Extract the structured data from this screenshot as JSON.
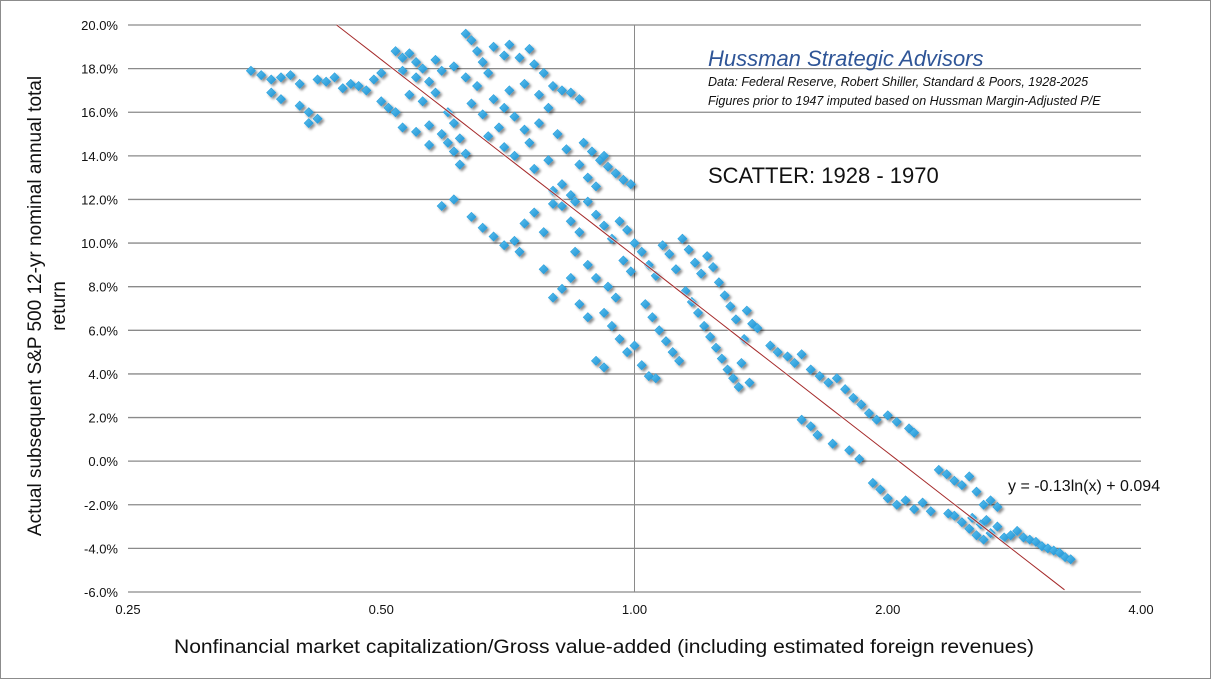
{
  "chart_data": {
    "type": "scatter",
    "title": "Hussman Strategic Advisors",
    "annotations": [
      "Data: Federal Reserve, Robert Shiller, Standard & Poors, 1928-2025",
      "Figures prior to 1947 imputed based on Hussman Margin-Adjusted P/E"
    ],
    "subtitle": "SCATTER: 1928 - 1970",
    "xlabel": "Nonfinancial market capitalization/Gross value-added (including estimated foreign revenues)",
    "ylabel": "Actual subsequent S&P 500 12-yr nominal annual total return",
    "x_scale": "log2",
    "xlim": [
      0.25,
      4.0
    ],
    "ylim": [
      -6.0,
      20.0
    ],
    "x_ticks": [
      "0.25",
      "0.50",
      "1.00",
      "2.00",
      "4.00"
    ],
    "x_tick_values": [
      0.25,
      0.5,
      1,
      2,
      4
    ],
    "y_ticks": [
      "20.0%",
      "18.0%",
      "16.0%",
      "14.0%",
      "12.0%",
      "10.0%",
      "8.0%",
      "6.0%",
      "4.0%",
      "2.0%",
      "0.0%",
      "-2.0%",
      "-4.0%",
      "-6.0%"
    ],
    "y_tick_values": [
      20,
      18,
      16,
      14,
      12,
      10,
      8,
      6,
      4,
      2,
      0,
      -2,
      -4,
      -6
    ],
    "grid": "horizontal",
    "marker": "diamond",
    "marker_color": "#2b9fdc",
    "trendline": {
      "type": "logarithmic",
      "equation": "y = -0.13ln(x) + 0.094",
      "a": -0.13,
      "b": 0.094,
      "color": "#a52a2a"
    },
    "points": [
      [
        0.35,
        17.9
      ],
      [
        0.36,
        17.7
      ],
      [
        0.37,
        17.5
      ],
      [
        0.37,
        16.9
      ],
      [
        0.38,
        17.6
      ],
      [
        0.38,
        16.6
      ],
      [
        0.39,
        17.7
      ],
      [
        0.4,
        17.3
      ],
      [
        0.4,
        16.3
      ],
      [
        0.41,
        16.0
      ],
      [
        0.41,
        15.5
      ],
      [
        0.42,
        15.7
      ],
      [
        0.42,
        17.5
      ],
      [
        0.43,
        17.4
      ],
      [
        0.44,
        17.6
      ],
      [
        0.45,
        17.1
      ],
      [
        0.46,
        17.3
      ],
      [
        0.47,
        17.2
      ],
      [
        0.48,
        17.0
      ],
      [
        0.49,
        17.5
      ],
      [
        0.5,
        17.8
      ],
      [
        0.5,
        16.5
      ],
      [
        0.51,
        16.2
      ],
      [
        0.52,
        16.0
      ],
      [
        0.52,
        18.8
      ],
      [
        0.53,
        18.5
      ],
      [
        0.54,
        18.7
      ],
      [
        0.55,
        18.3
      ],
      [
        0.53,
        17.9
      ],
      [
        0.55,
        17.6
      ],
      [
        0.56,
        18.0
      ],
      [
        0.57,
        17.4
      ],
      [
        0.54,
        16.8
      ],
      [
        0.56,
        16.5
      ],
      [
        0.58,
        16.9
      ],
      [
        0.57,
        15.4
      ],
      [
        0.59,
        15.0
      ],
      [
        0.6,
        14.6
      ],
      [
        0.61,
        14.2
      ],
      [
        0.62,
        14.8
      ],
      [
        0.6,
        16.0
      ],
      [
        0.61,
        15.5
      ],
      [
        0.59,
        17.9
      ],
      [
        0.61,
        18.1
      ],
      [
        0.58,
        18.4
      ],
      [
        0.62,
        13.6
      ],
      [
        0.63,
        14.1
      ],
      [
        0.55,
        15.1
      ],
      [
        0.53,
        15.3
      ],
      [
        0.57,
        14.5
      ],
      [
        0.63,
        19.6
      ],
      [
        0.64,
        19.3
      ],
      [
        0.65,
        18.8
      ],
      [
        0.66,
        18.3
      ],
      [
        0.67,
        17.8
      ],
      [
        0.63,
        17.6
      ],
      [
        0.65,
        17.2
      ],
      [
        0.68,
        16.6
      ],
      [
        0.7,
        16.2
      ],
      [
        0.72,
        15.8
      ],
      [
        0.74,
        15.2
      ],
      [
        0.71,
        17.0
      ],
      [
        0.73,
        18.5
      ],
      [
        0.75,
        18.9
      ],
      [
        0.76,
        18.2
      ],
      [
        0.78,
        17.8
      ],
      [
        0.74,
        17.3
      ],
      [
        0.77,
        16.8
      ],
      [
        0.69,
        15.3
      ],
      [
        0.66,
        15.9
      ],
      [
        0.64,
        16.4
      ],
      [
        0.67,
        14.9
      ],
      [
        0.7,
        14.4
      ],
      [
        0.72,
        14.0
      ],
      [
        0.75,
        14.6
      ],
      [
        0.77,
        15.5
      ],
      [
        0.79,
        16.2
      ],
      [
        0.8,
        17.2
      ],
      [
        0.82,
        17.0
      ],
      [
        0.84,
        16.9
      ],
      [
        0.86,
        16.6
      ],
      [
        0.81,
        15.0
      ],
      [
        0.83,
        14.3
      ],
      [
        0.79,
        13.8
      ],
      [
        0.76,
        13.4
      ],
      [
        0.68,
        19.0
      ],
      [
        0.7,
        18.6
      ],
      [
        0.71,
        19.1
      ],
      [
        0.87,
        14.6
      ],
      [
        0.89,
        14.2
      ],
      [
        0.91,
        13.8
      ],
      [
        0.93,
        13.5
      ],
      [
        0.95,
        13.2
      ],
      [
        0.97,
        12.9
      ],
      [
        0.99,
        12.7
      ],
      [
        0.88,
        13.0
      ],
      [
        0.9,
        12.6
      ],
      [
        0.86,
        13.6
      ],
      [
        0.92,
        14.0
      ],
      [
        0.84,
        12.2
      ],
      [
        0.82,
        12.7
      ],
      [
        0.85,
        11.9
      ],
      [
        0.59,
        11.7
      ],
      [
        0.61,
        12.0
      ],
      [
        0.64,
        11.2
      ],
      [
        0.66,
        10.7
      ],
      [
        0.68,
        10.3
      ],
      [
        0.7,
        9.9
      ],
      [
        0.72,
        10.1
      ],
      [
        0.74,
        10.9
      ],
      [
        0.76,
        11.4
      ],
      [
        0.78,
        10.5
      ],
      [
        0.73,
        9.6
      ],
      [
        0.8,
        11.8
      ],
      [
        0.8,
        12.4
      ],
      [
        0.82,
        11.7
      ],
      [
        0.84,
        11.0
      ],
      [
        0.86,
        10.5
      ],
      [
        0.88,
        11.9
      ],
      [
        0.9,
        11.3
      ],
      [
        0.92,
        10.8
      ],
      [
        0.94,
        10.2
      ],
      [
        0.96,
        11.0
      ],
      [
        0.98,
        10.6
      ],
      [
        1.0,
        10.0
      ],
      [
        0.85,
        9.6
      ],
      [
        0.88,
        9.0
      ],
      [
        0.9,
        8.4
      ],
      [
        0.93,
        8.0
      ],
      [
        0.95,
        7.5
      ],
      [
        0.97,
        9.2
      ],
      [
        0.99,
        8.7
      ],
      [
        1.02,
        9.6
      ],
      [
        1.04,
        9.0
      ],
      [
        1.06,
        8.5
      ],
      [
        1.08,
        9.9
      ],
      [
        1.1,
        9.5
      ],
      [
        1.12,
        8.8
      ],
      [
        1.14,
        10.2
      ],
      [
        1.16,
        9.7
      ],
      [
        1.18,
        9.1
      ],
      [
        1.2,
        8.6
      ],
      [
        1.22,
        9.4
      ],
      [
        1.24,
        8.9
      ],
      [
        1.26,
        8.2
      ],
      [
        1.28,
        7.6
      ],
      [
        1.3,
        7.1
      ],
      [
        1.03,
        7.2
      ],
      [
        1.05,
        6.6
      ],
      [
        1.07,
        6.0
      ],
      [
        1.09,
        5.5
      ],
      [
        1.11,
        5.0
      ],
      [
        1.13,
        4.6
      ],
      [
        1.15,
        7.8
      ],
      [
        1.17,
        7.3
      ],
      [
        1.19,
        6.8
      ],
      [
        1.21,
        6.2
      ],
      [
        1.23,
        5.7
      ],
      [
        1.25,
        5.2
      ],
      [
        1.27,
        4.7
      ],
      [
        1.29,
        4.2
      ],
      [
        1.31,
        3.8
      ],
      [
        1.33,
        3.4
      ],
      [
        1.35,
        5.6
      ],
      [
        1.32,
        6.5
      ],
      [
        1.36,
        6.9
      ],
      [
        1.38,
        6.3
      ],
      [
        1.4,
        6.1
      ],
      [
        1.34,
        4.5
      ],
      [
        1.37,
        3.6
      ],
      [
        0.92,
        6.8
      ],
      [
        0.94,
        6.2
      ],
      [
        0.96,
        5.6
      ],
      [
        0.98,
        5.0
      ],
      [
        0.9,
        4.6
      ],
      [
        0.92,
        4.3
      ],
      [
        1.0,
        5.3
      ],
      [
        1.02,
        4.4
      ],
      [
        1.04,
        3.9
      ],
      [
        0.82,
        7.9
      ],
      [
        0.84,
        8.4
      ],
      [
        0.78,
        8.8
      ],
      [
        0.8,
        7.5
      ],
      [
        0.86,
        7.2
      ],
      [
        0.88,
        6.6
      ],
      [
        1.06,
        3.8
      ],
      [
        1.45,
        5.3
      ],
      [
        1.48,
        5.0
      ],
      [
        1.52,
        4.8
      ],
      [
        1.55,
        4.5
      ],
      [
        1.58,
        4.9
      ],
      [
        1.62,
        4.2
      ],
      [
        1.66,
        3.9
      ],
      [
        1.7,
        3.6
      ],
      [
        1.74,
        3.8
      ],
      [
        1.78,
        3.3
      ],
      [
        1.82,
        2.9
      ],
      [
        1.86,
        2.6
      ],
      [
        1.9,
        2.2
      ],
      [
        1.94,
        1.9
      ],
      [
        2.0,
        2.1
      ],
      [
        2.05,
        1.8
      ],
      [
        2.12,
        1.5
      ],
      [
        2.15,
        1.3
      ],
      [
        1.58,
        1.9
      ],
      [
        1.62,
        1.6
      ],
      [
        1.65,
        1.2
      ],
      [
        1.72,
        0.8
      ],
      [
        1.8,
        0.5
      ],
      [
        1.85,
        0.1
      ],
      [
        1.92,
        -1.0
      ],
      [
        1.96,
        -1.3
      ],
      [
        2.0,
        -1.7
      ],
      [
        2.05,
        -2.0
      ],
      [
        2.1,
        -1.8
      ],
      [
        2.15,
        -2.2
      ],
      [
        2.2,
        -1.9
      ],
      [
        2.25,
        -2.3
      ],
      [
        2.3,
        -0.4
      ],
      [
        2.35,
        -0.6
      ],
      [
        2.4,
        -0.9
      ],
      [
        2.45,
        -1.1
      ],
      [
        2.5,
        -0.7
      ],
      [
        2.55,
        -1.4
      ],
      [
        2.6,
        -2.0
      ],
      [
        2.65,
        -1.8
      ],
      [
        2.7,
        -2.1
      ],
      [
        2.4,
        -2.5
      ],
      [
        2.45,
        -2.8
      ],
      [
        2.5,
        -3.1
      ],
      [
        2.55,
        -3.4
      ],
      [
        2.6,
        -3.6
      ],
      [
        2.65,
        -3.3
      ],
      [
        2.7,
        -3.0
      ],
      [
        2.75,
        -3.5
      ],
      [
        2.8,
        -3.4
      ],
      [
        2.85,
        -3.2
      ],
      [
        2.9,
        -3.5
      ],
      [
        2.95,
        -3.6
      ],
      [
        3.0,
        -3.7
      ],
      [
        3.05,
        -3.9
      ],
      [
        3.1,
        -4.0
      ],
      [
        3.15,
        -4.1
      ],
      [
        3.2,
        -4.2
      ],
      [
        3.25,
        -4.4
      ],
      [
        3.3,
        -4.5
      ],
      [
        2.52,
        -2.6
      ],
      [
        2.58,
        -2.9
      ],
      [
        2.62,
        -2.7
      ],
      [
        2.36,
        -2.4
      ]
    ]
  }
}
